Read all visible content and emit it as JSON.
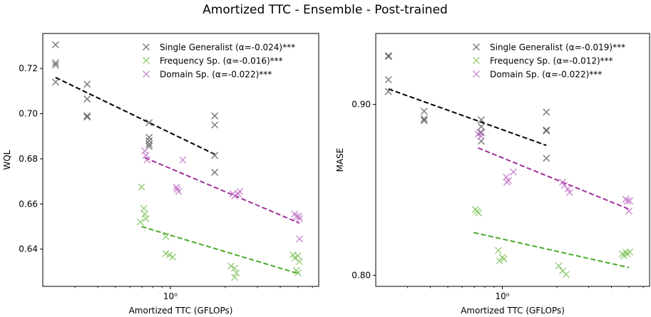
{
  "title": "Amortized TTC - Ensemble - Post-trained",
  "colors": {
    "single": "#555555",
    "frequency": "#7dc25a",
    "domain": "#c070c8",
    "single_fit": "#000000",
    "frequency_fit": "#4aaa2a",
    "domain_fit": "#a0309a"
  },
  "chart_data": [
    {
      "type": "scatter",
      "xscale": "log",
      "xlabel": "Amortized TTC (GFLOPs)",
      "ylabel": "WQL",
      "xlim": [
        0.2,
        6.5
      ],
      "ylim": [
        0.6235,
        0.7355
      ],
      "yticks": [
        0.64,
        0.66,
        0.68,
        0.7,
        0.72
      ],
      "ytick_labels": [
        "0.64",
        "0.66",
        "0.68",
        "0.70",
        "0.72"
      ],
      "xticks": [
        1
      ],
      "xtick_labels": [
        "10⁰"
      ],
      "legend": "top-right",
      "series": [
        {
          "name": "Single Generalist (α=-0.024)***",
          "color_key": "single",
          "points": [
            [
              0.235,
              0.7305
            ],
            [
              0.235,
              0.7225
            ],
            [
              0.235,
              0.7215
            ],
            [
              0.235,
              0.714
            ],
            [
              0.35,
              0.713
            ],
            [
              0.35,
              0.7065
            ],
            [
              0.35,
              0.699
            ],
            [
              0.35,
              0.6985
            ],
            [
              0.765,
              0.696
            ],
            [
              0.765,
              0.6895
            ],
            [
              0.765,
              0.688
            ],
            [
              0.765,
              0.6865
            ],
            [
              0.765,
              0.6855
            ],
            [
              1.75,
              0.699
            ],
            [
              1.75,
              0.695
            ],
            [
              1.75,
              0.6815
            ],
            [
              1.75,
              0.674
            ]
          ],
          "fit": [
            [
              0.235,
              0.716
            ],
            [
              1.75,
              0.682
            ]
          ]
        },
        {
          "name": "Frequency Sp. (α=-0.016)***",
          "color_key": "frequency",
          "points": [
            [
              0.695,
              0.6675
            ],
            [
              0.715,
              0.658
            ],
            [
              0.725,
              0.6555
            ],
            [
              0.735,
              0.6535
            ],
            [
              0.685,
              0.652
            ],
            [
              0.945,
              0.6455
            ],
            [
              0.945,
              0.638
            ],
            [
              0.99,
              0.6375
            ],
            [
              1.03,
              0.6365
            ],
            [
              2.15,
              0.6325
            ],
            [
              2.25,
              0.6315
            ],
            [
              2.3,
              0.6295
            ],
            [
              2.25,
              0.6275
            ],
            [
              4.7,
              0.6375
            ],
            [
              4.8,
              0.636
            ],
            [
              5.0,
              0.637
            ],
            [
              5.1,
              0.6345
            ],
            [
              5.0,
              0.6295
            ],
            [
              4.9,
              0.6305
            ]
          ],
          "fit": [
            [
              0.695,
              0.65
            ],
            [
              5.1,
              0.629
            ]
          ]
        },
        {
          "name": "Domain Sp. (α=-0.022)***",
          "color_key": "domain",
          "points": [
            [
              0.725,
              0.6835
            ],
            [
              0.735,
              0.6815
            ],
            [
              0.745,
              0.6795
            ],
            [
              1.08,
              0.6675
            ],
            [
              1.09,
              0.6665
            ],
            [
              1.11,
              0.6655
            ],
            [
              1.17,
              0.6795
            ],
            [
              2.2,
              0.6645
            ],
            [
              2.25,
              0.6635
            ],
            [
              2.35,
              0.6645
            ],
            [
              2.4,
              0.6655
            ],
            [
              4.8,
              0.6555
            ],
            [
              4.9,
              0.6545
            ],
            [
              5.05,
              0.6545
            ],
            [
              5.1,
              0.6535
            ],
            [
              5.1,
              0.6445
            ]
          ],
          "fit": [
            [
              0.725,
              0.6805
            ],
            [
              5.1,
              0.6515
            ]
          ]
        }
      ]
    },
    {
      "type": "scatter",
      "xscale": "log",
      "xlabel": "Amortized TTC (GFLOPs)",
      "ylabel": "MASE",
      "xlim": [
        0.2,
        6.5
      ],
      "ylim": [
        0.7935,
        0.9415
      ],
      "yticks": [
        0.8,
        0.9
      ],
      "ytick_labels": [
        "0.80",
        "0.90"
      ],
      "xticks": [
        1
      ],
      "xtick_labels": [
        "10⁰"
      ],
      "legend": "top-right",
      "series": [
        {
          "name": "Single Generalist (α=-0.019)***",
          "color_key": "single",
          "points": [
            [
              0.235,
              0.9285
            ],
            [
              0.235,
              0.928
            ],
            [
              0.235,
              0.9145
            ],
            [
              0.235,
              0.9075
            ],
            [
              0.37,
              0.896
            ],
            [
              0.37,
              0.8915
            ],
            [
              0.37,
              0.8905
            ],
            [
              0.765,
              0.891
            ],
            [
              0.765,
              0.887
            ],
            [
              0.765,
              0.8835
            ],
            [
              0.765,
              0.8785
            ],
            [
              1.75,
              0.8955
            ],
            [
              1.75,
              0.885
            ],
            [
              1.75,
              0.8845
            ],
            [
              1.75,
              0.8685
            ]
          ],
          "fit": [
            [
              0.235,
              0.909
            ],
            [
              1.75,
              0.876
            ]
          ]
        },
        {
          "name": "Frequency Sp. (α=-0.012)***",
          "color_key": "frequency",
          "points": [
            [
              0.71,
              0.8385
            ],
            [
              0.725,
              0.8375
            ],
            [
              0.74,
              0.8365
            ],
            [
              0.95,
              0.8145
            ],
            [
              0.965,
              0.8085
            ],
            [
              1.0,
              0.8105
            ],
            [
              1.02,
              0.8095
            ],
            [
              2.05,
              0.8055
            ],
            [
              2.15,
              0.8025
            ],
            [
              2.25,
              0.8005
            ],
            [
              4.6,
              0.8125
            ],
            [
              4.7,
              0.8115
            ],
            [
              4.8,
              0.8135
            ],
            [
              4.9,
              0.8125
            ],
            [
              5.05,
              0.8135
            ]
          ],
          "fit": [
            [
              0.695,
              0.825
            ],
            [
              5.0,
              0.8045
            ]
          ]
        },
        {
          "name": "Domain Sp. (α=-0.022)***",
          "color_key": "domain",
          "points": [
            [
              0.735,
              0.8825
            ],
            [
              0.75,
              0.8835
            ],
            [
              0.76,
              0.8815
            ],
            [
              1.05,
              0.8575
            ],
            [
              1.06,
              0.8545
            ],
            [
              1.08,
              0.8555
            ],
            [
              1.15,
              0.8605
            ],
            [
              2.15,
              0.8545
            ],
            [
              2.2,
              0.8525
            ],
            [
              2.3,
              0.8505
            ],
            [
              2.35,
              0.8485
            ],
            [
              4.8,
              0.8445
            ],
            [
              4.9,
              0.8435
            ],
            [
              5.05,
              0.8435
            ],
            [
              5.0,
              0.8375
            ]
          ],
          "fit": [
            [
              0.735,
              0.8745
            ],
            [
              5.05,
              0.8385
            ]
          ]
        }
      ]
    }
  ]
}
